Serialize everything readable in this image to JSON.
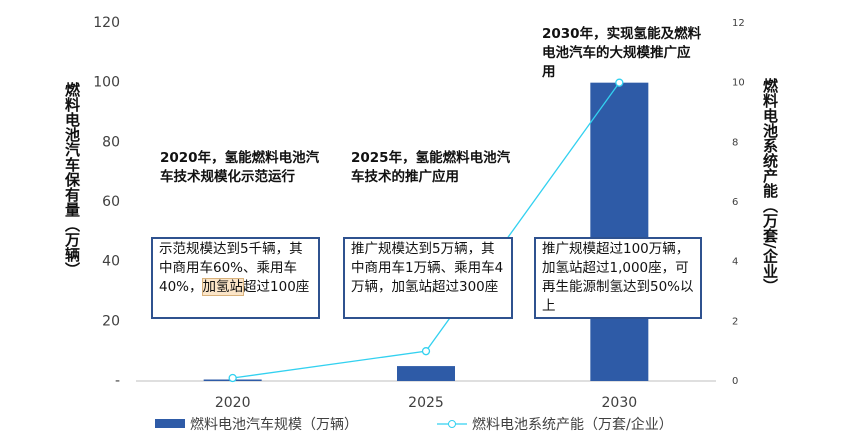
{
  "chart_data": {
    "type": "bar-line",
    "categories": [
      "2020",
      "2025",
      "2030"
    ],
    "series": [
      {
        "name": "燃料电池汽车规模（万辆）",
        "type": "bar",
        "color": "#2e5ba7",
        "values": [
          0.5,
          5,
          100
        ]
      },
      {
        "name": "燃料电池系统产能（万套/企业）",
        "type": "line",
        "axis": "y2",
        "color": "#33d1f0",
        "values": [
          0.1,
          1,
          10
        ]
      }
    ],
    "ylabel": "燃料电池汽车保有量（万辆）",
    "y2label": "燃料电池系统产能（万套/企业）",
    "ylim": [
      0,
      120
    ],
    "yticks": [
      {
        "value": 0,
        "label": "-"
      },
      20,
      40,
      60,
      80,
      100,
      120
    ],
    "y2lim": [
      0,
      12
    ],
    "y2ticks": [
      0,
      2,
      4,
      6,
      8,
      10,
      12
    ],
    "grid": false,
    "legend": "bottom",
    "annotations": [
      {
        "title": "2020年，氢能燃料电池汽车技术规模化示范运行",
        "note": [
          "示范规模达到5千辆，其中商用车60%、乘用车40%，",
          "加氢站",
          "超过100座"
        ]
      },
      {
        "title": "2025年，氢能燃料电池汽车技术的推广应用",
        "note": [
          "推广规模达到5万辆，其中商用车1万辆、乘用车4万辆，加氢站超过300座"
        ]
      },
      {
        "title": "2030年，实现氢能及燃料电池汽车的大规模推广应用",
        "note": [
          "推广规模超过100万辆，加氢站超过1,000座，可再生能源制氢达到50%以上"
        ]
      }
    ]
  }
}
